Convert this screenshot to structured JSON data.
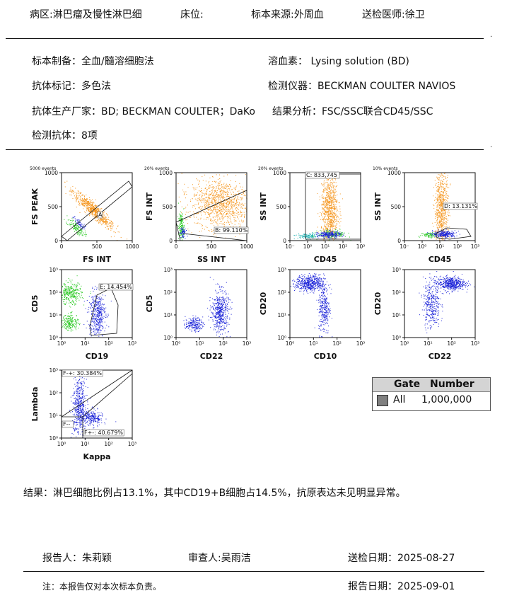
{
  "header": {
    "ward": "病区:淋巴瘤及慢性淋巴细",
    "bed": "床位:",
    "specimen_source": "标本来源:外周血",
    "doctor": "送检医师:徐卫"
  },
  "info": {
    "prep": "标本制备：全血/髓溶细胞法",
    "lysis": "溶血素：  Lysing solution (BD)",
    "marker": "抗体标记：多色法",
    "instrument": "检测仪器：BECKMAN COULTER NAVIOS",
    "vendor": "抗体生产厂家：BD; BECKMAN COULTER；DaKo",
    "analysis": "结果分析：FSC/SSC联合CD45/SSC",
    "antibodies": "检测抗体：8项"
  },
  "plots": [
    {
      "events": "5000 events",
      "xlabel": "FS INT",
      "ylabel": "FS PEAK",
      "scale": "linear",
      "gate": "A",
      "gate_pct": ""
    },
    {
      "events": "20% events",
      "xlabel": "SS INT",
      "ylabel": "FS INT",
      "scale": "linear",
      "gate": "B",
      "gate_pct": "B: 99.110%"
    },
    {
      "events": "20% events",
      "xlabel": "CD45",
      "ylabel": "SS INT",
      "scale": "log-x",
      "gate": "C",
      "gate_pct": "C: 833,745"
    },
    {
      "events": "10% events",
      "xlabel": "CD45",
      "ylabel": "SS INT",
      "scale": "log-x",
      "gate": "D",
      "gate_pct": "D: 13.131%"
    },
    {
      "events": "",
      "xlabel": "CD19",
      "ylabel": "CD5",
      "scale": "log",
      "gate": "E",
      "gate_pct": "E: 14.454%"
    },
    {
      "events": "",
      "xlabel": "CD22",
      "ylabel": "CD5",
      "scale": "log",
      "gate": "",
      "gate_pct": ""
    },
    {
      "events": "",
      "xlabel": "CD10",
      "ylabel": "CD20",
      "scale": "log",
      "gate": "",
      "gate_pct": ""
    },
    {
      "events": "",
      "xlabel": "CD22",
      "ylabel": "CD20",
      "scale": "log",
      "gate": "",
      "gate_pct": ""
    },
    {
      "events": "",
      "xlabel": "Kappa",
      "ylabel": "Lambda",
      "scale": "log",
      "gate": "F",
      "quadrants": [
        "F-+: 30.384%",
        "F--",
        "F+-: 40.679%"
      ]
    }
  ],
  "ticks": {
    "linear": [
      "0",
      "500",
      "1000"
    ],
    "log": [
      "10⁰",
      "10¹",
      "10²",
      "10³"
    ],
    "log_full": [
      "10⁻",
      "10⁰",
      "10¹",
      "10²",
      "10³"
    ]
  },
  "gate_table": {
    "headers": [
      "Gate",
      "Number"
    ],
    "rows": [
      {
        "gate": "All",
        "number": "1,000,000",
        "color": "#808080"
      }
    ]
  },
  "colors": {
    "orange": "#f5961e",
    "blue": "#1a22d8",
    "green": "#27c81f",
    "teal": "#19b0b0"
  },
  "result": "结果：淋巴细胞比例占13.1%，其中CD19+B细胞占14.5%，抗原表达未见明显异常。",
  "footer": {
    "reporter": "报告人：朱莉颖",
    "reviewer": "审查人:吴雨洁",
    "send_date": "送检日期：2025-08-27",
    "note": "注：本报告仅对本次标本负责。",
    "report_date": "报告日期：2025-09-01"
  }
}
